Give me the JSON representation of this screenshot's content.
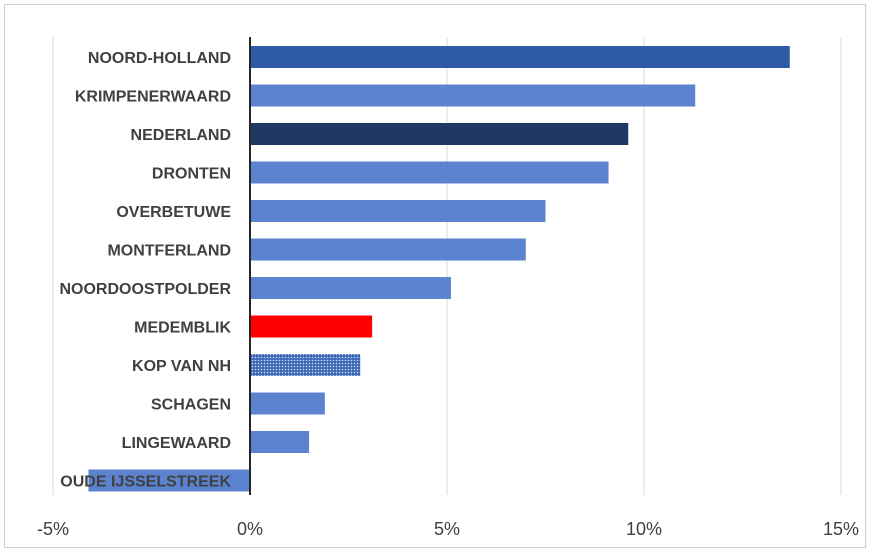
{
  "chart_data": {
    "type": "bar",
    "orientation": "horizontal",
    "title": "",
    "xlabel": "",
    "ylabel": "",
    "categories": [
      "NOORD-HOLLAND",
      "KRIMPENERWAARD",
      "NEDERLAND",
      "DRONTEN",
      "OVERBETUWE",
      "MONTFERLAND",
      "NOORDOOSTPOLDER",
      "MEDEMBLIK",
      "KOP VAN NH",
      "SCHAGEN",
      "LINGEWAARD",
      "OUDE IJSSELSTREEK"
    ],
    "values": [
      13.7,
      11.3,
      9.6,
      9.1,
      7.5,
      7.0,
      5.1,
      3.1,
      2.8,
      1.9,
      1.5,
      -4.1
    ],
    "xlim": [
      -5,
      15
    ],
    "xticks": [
      -5,
      0,
      5,
      10,
      15
    ],
    "xtick_labels": [
      "-5%",
      "0%",
      "5%",
      "10%",
      "15%"
    ],
    "grid": true,
    "legend": "none",
    "colors": {
      "default": "#5b83cf",
      "highlight_region": "#2e5aa6",
      "national": "#1f3864",
      "focus_municipality": "#ff0000",
      "region_pattern_base": "#4a72c4",
      "region_pattern_dots": "#c9d7f0"
    },
    "bar_styles": [
      "highlight_region",
      "default",
      "national",
      "default",
      "default",
      "default",
      "default",
      "focus_municipality",
      "pattern",
      "default",
      "default",
      "default"
    ]
  }
}
